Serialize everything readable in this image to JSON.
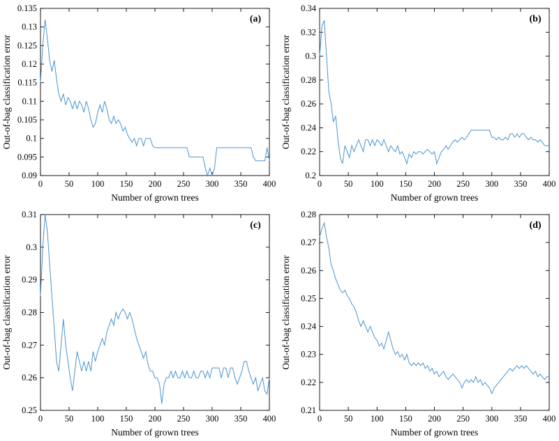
{
  "style": {
    "line_color": "#4a94d0",
    "axis_color": "#000000",
    "background": "#ffffff"
  },
  "chart_data": [
    {
      "type": "line",
      "label": "(a)",
      "xlabel": "Number of grown trees",
      "ylabel": "Out-of-bag classification error",
      "xlim": [
        0,
        400
      ],
      "ylim": [
        0.09,
        0.135
      ],
      "xticks": [
        0,
        50,
        100,
        150,
        200,
        250,
        300,
        350,
        400
      ],
      "yticks": [
        0.09,
        0.095,
        0.1,
        0.105,
        0.11,
        0.115,
        0.12,
        0.125,
        0.13,
        0.135
      ],
      "ytick_labels": [
        "0.09",
        "0.095",
        "0.1",
        "0.105",
        "0.11",
        "0.115",
        "0.12",
        "0.125",
        "0.13",
        "0.135"
      ],
      "grid": false,
      "legend": null,
      "values": [
        0.115,
        0.125,
        0.132,
        0.127,
        0.121,
        0.118,
        0.121,
        0.116,
        0.112,
        0.11,
        0.112,
        0.109,
        0.111,
        0.11,
        0.108,
        0.11,
        0.108,
        0.11,
        0.109,
        0.107,
        0.11,
        0.108,
        0.105,
        0.103,
        0.104,
        0.107,
        0.109,
        0.107,
        0.11,
        0.108,
        0.105,
        0.104,
        0.106,
        0.104,
        0.105,
        0.104,
        0.102,
        0.103,
        0.101,
        0.1,
        0.099,
        0.1,
        0.098,
        0.1,
        0.1,
        0.098,
        0.1,
        0.1,
        0.1,
        0.098,
        0.0975,
        0.0975,
        0.0975,
        0.0975,
        0.0975,
        0.0975,
        0.0975,
        0.0975,
        0.0975,
        0.0975,
        0.0975,
        0.0975,
        0.0975,
        0.0975,
        0.0975,
        0.095,
        0.095,
        0.095,
        0.095,
        0.095,
        0.095,
        0.095,
        0.092,
        0.09,
        0.092,
        0.09,
        0.092,
        0.0975,
        0.0975,
        0.0975,
        0.0975,
        0.0975,
        0.0975,
        0.0975,
        0.0975,
        0.0975,
        0.0975,
        0.0975,
        0.0975,
        0.0975,
        0.0975,
        0.0975,
        0.0975,
        0.095,
        0.094,
        0.094,
        0.094,
        0.094,
        0.094,
        0.0975,
        0.094
      ]
    },
    {
      "type": "line",
      "label": "(b)",
      "xlabel": "Number of grown trees",
      "ylabel": "Out-of-bag classification error",
      "xlim": [
        0,
        400
      ],
      "ylim": [
        0.2,
        0.34
      ],
      "xticks": [
        0,
        50,
        100,
        150,
        200,
        250,
        300,
        350,
        400
      ],
      "yticks": [
        0.2,
        0.22,
        0.24,
        0.26,
        0.28,
        0.3,
        0.32,
        0.34
      ],
      "ytick_labels": [
        "0.2",
        "0.22",
        "0.24",
        "0.26",
        "0.28",
        "0.3",
        "0.32",
        "0.34"
      ],
      "grid": false,
      "legend": null,
      "values": [
        0.3,
        0.325,
        0.33,
        0.3,
        0.27,
        0.26,
        0.245,
        0.25,
        0.23,
        0.215,
        0.21,
        0.225,
        0.22,
        0.215,
        0.225,
        0.22,
        0.225,
        0.23,
        0.225,
        0.22,
        0.23,
        0.23,
        0.225,
        0.23,
        0.225,
        0.23,
        0.228,
        0.225,
        0.23,
        0.225,
        0.22,
        0.225,
        0.222,
        0.22,
        0.225,
        0.218,
        0.22,
        0.215,
        0.21,
        0.218,
        0.215,
        0.22,
        0.218,
        0.22,
        0.22,
        0.218,
        0.22,
        0.222,
        0.22,
        0.218,
        0.22,
        0.21,
        0.215,
        0.22,
        0.222,
        0.225,
        0.222,
        0.225,
        0.228,
        0.23,
        0.228,
        0.23,
        0.232,
        0.23,
        0.232,
        0.235,
        0.238,
        0.238,
        0.238,
        0.238,
        0.238,
        0.238,
        0.238,
        0.238,
        0.238,
        0.232,
        0.232,
        0.23,
        0.232,
        0.23,
        0.23,
        0.232,
        0.23,
        0.235,
        0.235,
        0.232,
        0.235,
        0.232,
        0.235,
        0.235,
        0.232,
        0.23,
        0.232,
        0.23,
        0.23,
        0.228,
        0.23,
        0.228,
        0.225,
        0.225,
        0.225
      ]
    },
    {
      "type": "line",
      "label": "(c)",
      "xlabel": "Number of grown trees",
      "ylabel": "Out-of-bag classification error",
      "xlim": [
        0,
        400
      ],
      "ylim": [
        0.25,
        0.31
      ],
      "xticks": [
        0,
        50,
        100,
        150,
        200,
        250,
        300,
        350,
        400
      ],
      "yticks": [
        0.25,
        0.26,
        0.27,
        0.28,
        0.29,
        0.3,
        0.31
      ],
      "ytick_labels": [
        "0.25",
        "0.26",
        "0.27",
        "0.28",
        "0.29",
        "0.3",
        "0.31"
      ],
      "grid": false,
      "legend": null,
      "values": [
        0.285,
        0.3,
        0.31,
        0.305,
        0.295,
        0.285,
        0.275,
        0.265,
        0.262,
        0.27,
        0.278,
        0.27,
        0.265,
        0.26,
        0.256,
        0.262,
        0.268,
        0.265,
        0.262,
        0.265,
        0.262,
        0.265,
        0.262,
        0.268,
        0.265,
        0.268,
        0.27,
        0.272,
        0.27,
        0.274,
        0.276,
        0.278,
        0.276,
        0.28,
        0.278,
        0.28,
        0.281,
        0.28,
        0.278,
        0.28,
        0.278,
        0.275,
        0.272,
        0.27,
        0.268,
        0.266,
        0.268,
        0.264,
        0.262,
        0.262,
        0.26,
        0.26,
        0.258,
        0.252,
        0.258,
        0.26,
        0.26,
        0.262,
        0.26,
        0.262,
        0.26,
        0.26,
        0.262,
        0.26,
        0.262,
        0.26,
        0.26,
        0.262,
        0.26,
        0.26,
        0.262,
        0.262,
        0.26,
        0.262,
        0.26,
        0.263,
        0.263,
        0.263,
        0.263,
        0.26,
        0.263,
        0.263,
        0.26,
        0.263,
        0.263,
        0.26,
        0.258,
        0.26,
        0.262,
        0.265,
        0.265,
        0.262,
        0.26,
        0.258,
        0.26,
        0.256,
        0.258,
        0.26,
        0.256,
        0.255,
        0.26
      ]
    },
    {
      "type": "line",
      "label": "(d)",
      "xlabel": "Number of grown trees",
      "ylabel": "Out-of-bag classification error",
      "xlim": [
        0,
        400
      ],
      "ylim": [
        0.21,
        0.28
      ],
      "xticks": [
        0,
        50,
        100,
        150,
        200,
        250,
        300,
        350,
        400
      ],
      "yticks": [
        0.21,
        0.22,
        0.23,
        0.24,
        0.25,
        0.26,
        0.27,
        0.28
      ],
      "ytick_labels": [
        "0.21",
        "0.22",
        "0.23",
        "0.24",
        "0.25",
        "0.26",
        "0.27",
        "0.28"
      ],
      "grid": false,
      "legend": null,
      "values": [
        0.272,
        0.275,
        0.277,
        0.272,
        0.268,
        0.262,
        0.26,
        0.257,
        0.255,
        0.253,
        0.252,
        0.253,
        0.251,
        0.25,
        0.248,
        0.247,
        0.245,
        0.242,
        0.24,
        0.242,
        0.24,
        0.238,
        0.24,
        0.238,
        0.236,
        0.235,
        0.233,
        0.234,
        0.232,
        0.235,
        0.238,
        0.235,
        0.232,
        0.23,
        0.231,
        0.229,
        0.23,
        0.228,
        0.23,
        0.227,
        0.226,
        0.227,
        0.226,
        0.227,
        0.226,
        0.227,
        0.225,
        0.226,
        0.224,
        0.225,
        0.223,
        0.224,
        0.222,
        0.223,
        0.224,
        0.222,
        0.221,
        0.222,
        0.223,
        0.222,
        0.221,
        0.22,
        0.218,
        0.22,
        0.221,
        0.22,
        0.221,
        0.22,
        0.222,
        0.22,
        0.221,
        0.219,
        0.22,
        0.219,
        0.218,
        0.216,
        0.218,
        0.219,
        0.22,
        0.221,
        0.222,
        0.223,
        0.224,
        0.225,
        0.224,
        0.225,
        0.226,
        0.225,
        0.226,
        0.225,
        0.226,
        0.225,
        0.224,
        0.223,
        0.224,
        0.222,
        0.223,
        0.222,
        0.221,
        0.222,
        0.222
      ]
    }
  ]
}
